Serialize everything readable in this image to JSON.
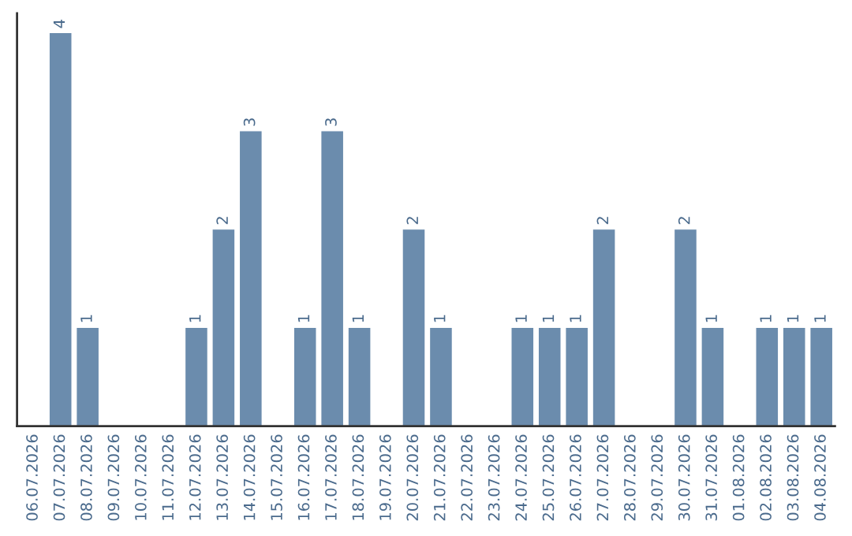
{
  "chart_data": {
    "type": "bar",
    "categories": [
      "06.07.2026",
      "07.07.2026",
      "08.07.2026",
      "09.07.2026",
      "10.07.2026",
      "11.07.2026",
      "12.07.2026",
      "13.07.2026",
      "14.07.2026",
      "15.07.2026",
      "16.07.2026",
      "17.07.2026",
      "18.07.2026",
      "19.07.2026",
      "20.07.2026",
      "21.07.2026",
      "22.07.2026",
      "23.07.2026",
      "24.07.2026",
      "25.07.2026",
      "26.07.2026",
      "27.07.2026",
      "28.07.2026",
      "29.07.2026",
      "30.07.2026",
      "31.07.2026",
      "01.08.2026",
      "02.08.2026",
      "03.08.2026",
      "04.08.2026"
    ],
    "values": [
      0,
      4,
      1,
      0,
      0,
      0,
      1,
      2,
      3,
      0,
      1,
      3,
      1,
      0,
      2,
      1,
      0,
      0,
      1,
      1,
      1,
      2,
      0,
      0,
      2,
      1,
      0,
      1,
      1,
      1
    ],
    "value_labels": [
      null,
      "4",
      "1",
      null,
      null,
      null,
      "1",
      "2",
      "3",
      null,
      "1",
      "3",
      "1",
      null,
      "2",
      "1",
      null,
      null,
      "1",
      "1",
      "1",
      "2",
      null,
      null,
      "2",
      "1",
      null,
      "1",
      "1",
      "1"
    ],
    "color": "#6b8cad",
    "ylim": [
      0,
      4.2
    ],
    "tick_labels": "x",
    "grid": false
  }
}
